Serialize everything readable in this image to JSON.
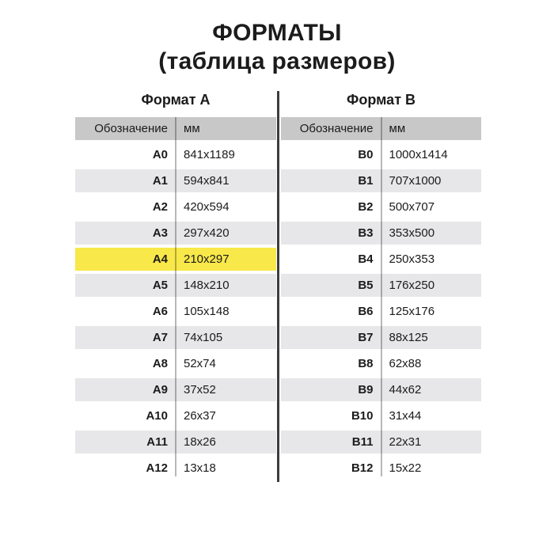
{
  "title": {
    "line1": "ФОРМАТЫ",
    "line2": "(таблица размеров)"
  },
  "tables": [
    {
      "name": "Формат A",
      "columns": {
        "designation": "Обозначение",
        "mm": "мм"
      },
      "rows": [
        {
          "label": "A0",
          "size": "841x1189",
          "highlight": false
        },
        {
          "label": "A1",
          "size": "594x841",
          "highlight": false
        },
        {
          "label": "A2",
          "size": "420x594",
          "highlight": false
        },
        {
          "label": "A3",
          "size": "297x420",
          "highlight": false
        },
        {
          "label": "A4",
          "size": "210x297",
          "highlight": true
        },
        {
          "label": "A5",
          "size": "148x210",
          "highlight": false
        },
        {
          "label": "A6",
          "size": "105x148",
          "highlight": false
        },
        {
          "label": "A7",
          "size": "74x105",
          "highlight": false
        },
        {
          "label": "A8",
          "size": "52x74",
          "highlight": false
        },
        {
          "label": "A9",
          "size": "37x52",
          "highlight": false
        },
        {
          "label": "A10",
          "size": "26x37",
          "highlight": false
        },
        {
          "label": "A11",
          "size": "18x26",
          "highlight": false
        },
        {
          "label": "A12",
          "size": "13x18",
          "highlight": false
        }
      ]
    },
    {
      "name": "Формат B",
      "columns": {
        "designation": "Обозначение",
        "mm": "мм"
      },
      "rows": [
        {
          "label": "B0",
          "size": "1000x1414",
          "highlight": false
        },
        {
          "label": "B1",
          "size": "707x1000",
          "highlight": false
        },
        {
          "label": "B2",
          "size": "500x707",
          "highlight": false
        },
        {
          "label": "B3",
          "size": "353x500",
          "highlight": false
        },
        {
          "label": "B4",
          "size": "250x353",
          "highlight": false
        },
        {
          "label": "B5",
          "size": "176x250",
          "highlight": false
        },
        {
          "label": "B6",
          "size": "125x176",
          "highlight": false
        },
        {
          "label": "B7",
          "size": "88x125",
          "highlight": false
        },
        {
          "label": "B8",
          "size": "62x88",
          "highlight": false
        },
        {
          "label": "B9",
          "size": "44x62",
          "highlight": false
        },
        {
          "label": "B10",
          "size": "31x44",
          "highlight": false
        },
        {
          "label": "B11",
          "size": "22x31",
          "highlight": false
        },
        {
          "label": "B12",
          "size": "15x22",
          "highlight": false
        }
      ]
    }
  ],
  "colors": {
    "header_bg": "#c9c8c8",
    "row_alt_bg": "#e7e7e9",
    "highlight_bg": "#f8e84a",
    "text": "#1b1b1b",
    "divider": "#3d3d3d"
  }
}
